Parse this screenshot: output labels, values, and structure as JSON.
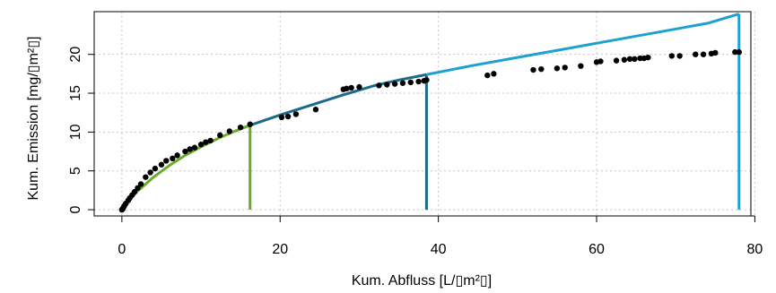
{
  "chart_data": {
    "type": "scatter",
    "xlabel": "Kum. Abfluss [L/▯m²▯]",
    "ylabel": "Kum. Emission [mg/▯m²▯]",
    "xlim": [
      -3.5,
      79.5
    ],
    "ylim": [
      -0.8,
      25.5
    ],
    "x_ticks": [
      0,
      20,
      40,
      60,
      80
    ],
    "y_ticks": [
      0,
      5,
      10,
      15,
      20
    ],
    "grid": true,
    "colors": {
      "points": "#000000",
      "seg1": "#6aaa2c",
      "seg2": "#1a6a8a",
      "seg3": "#1ea0d0",
      "grid": "#c8c8c8"
    },
    "observed_points": {
      "x": [
        0.0,
        0.1,
        0.2,
        0.3,
        0.5,
        0.8,
        1.0,
        1.3,
        1.6,
        2.0,
        2.4,
        3.0,
        3.6,
        4.2,
        5.0,
        5.6,
        6.4,
        7.0,
        8.0,
        8.6,
        9.2,
        10.0,
        10.6,
        11.2,
        12.4,
        13.6,
        15.0,
        16.2,
        20.2,
        21.0,
        22.0,
        24.5,
        28.0,
        28.4,
        29.0,
        30.0,
        32.5,
        33.5,
        34.5,
        35.5,
        36.5,
        37.5,
        38.2,
        38.5,
        46.2,
        47.0,
        52.0,
        53.0,
        55.0,
        56.0,
        58.0,
        60.0,
        60.5,
        62.5,
        63.5,
        64.2,
        64.8,
        65.5,
        66.0,
        66.5,
        69.5,
        70.5,
        72.5,
        73.5,
        74.5,
        75.0,
        77.5,
        78.0
      ],
      "y": [
        0.0,
        0.1,
        0.3,
        0.5,
        0.8,
        1.2,
        1.5,
        1.9,
        2.3,
        2.8,
        3.3,
        4.2,
        4.8,
        5.3,
        5.8,
        6.3,
        6.6,
        7.0,
        7.5,
        7.8,
        8.0,
        8.4,
        8.7,
        8.9,
        9.6,
        10.1,
        10.6,
        11.0,
        11.9,
        12.0,
        12.3,
        12.9,
        15.5,
        15.6,
        15.7,
        15.8,
        16.0,
        16.1,
        16.2,
        16.3,
        16.4,
        16.5,
        16.6,
        16.7,
        17.3,
        17.5,
        18.0,
        18.1,
        18.2,
        18.3,
        18.5,
        19.0,
        19.1,
        19.2,
        19.3,
        19.4,
        19.4,
        19.5,
        19.5,
        19.6,
        19.8,
        19.8,
        20.0,
        20.0,
        20.1,
        20.2,
        20.3,
        20.3
      ]
    },
    "fitted_segments": [
      {
        "color_key": "seg1",
        "x": [
          0,
          1,
          2,
          4,
          6,
          8,
          10,
          12,
          14,
          16
        ],
        "y": [
          0,
          1.35,
          2.4,
          4.2,
          5.7,
          7.0,
          8.1,
          9.1,
          10.0,
          10.8
        ],
        "drop_x": 16.2
      },
      {
        "color_key": "seg2",
        "x": [
          16,
          20,
          24,
          28,
          32,
          35,
          38.5
        ],
        "y": [
          10.8,
          12.2,
          13.5,
          14.8,
          16.0,
          16.7,
          17.4
        ],
        "drop_x": 38.5
      },
      {
        "color_key": "seg3",
        "x": [
          38.5,
          44,
          50,
          56,
          62,
          68,
          74,
          78
        ],
        "y": [
          17.4,
          18.5,
          19.6,
          20.7,
          21.8,
          22.9,
          24.0,
          25.2
        ],
        "drop_x": 78.0
      }
    ]
  }
}
